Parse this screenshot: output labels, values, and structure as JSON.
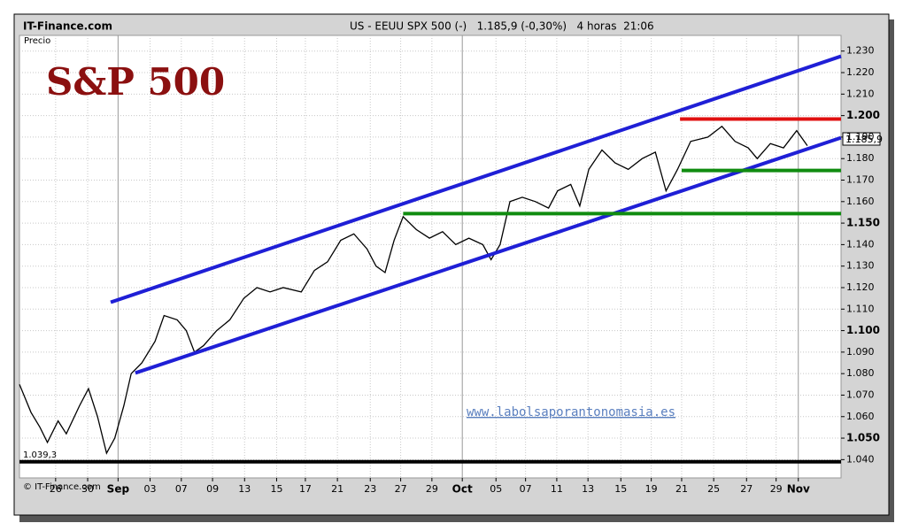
{
  "chart_data": {
    "type": "line",
    "site": "IT-Finance.com",
    "header": "US - EEUU SPX 500 (-)   1.185,9 (-0,30%)   4 horas  21:06",
    "y_label": "Precio",
    "title": "S&P 500",
    "watermark": "www.labolsaporantonomasia.es",
    "copyright": "© IT-Finance.com",
    "low_label": "1.039,3",
    "last_label": "1.185,9",
    "grid": true,
    "xlim": [
      0,
      100
    ],
    "ylim": [
      1.0315,
      1.2373
    ],
    "xticks": [
      {
        "value": 4.4,
        "label": "26"
      },
      {
        "value": 8.3,
        "label": "30"
      },
      {
        "value": 12.0,
        "label": "Sep"
      },
      {
        "value": 15.9,
        "label": "03"
      },
      {
        "value": 19.7,
        "label": "07"
      },
      {
        "value": 23.5,
        "label": "09"
      },
      {
        "value": 27.4,
        "label": "13"
      },
      {
        "value": 31.3,
        "label": "15"
      },
      {
        "value": 34.8,
        "label": "17"
      },
      {
        "value": 38.7,
        "label": "21"
      },
      {
        "value": 42.7,
        "label": "23"
      },
      {
        "value": 46.4,
        "label": "27"
      },
      {
        "value": 50.2,
        "label": "29"
      },
      {
        "value": 53.9,
        "label": "Oct"
      },
      {
        "value": 58.0,
        "label": "05"
      },
      {
        "value": 61.6,
        "label": "07"
      },
      {
        "value": 65.4,
        "label": "11"
      },
      {
        "value": 69.2,
        "label": "13"
      },
      {
        "value": 73.2,
        "label": "15"
      },
      {
        "value": 76.9,
        "label": "19"
      },
      {
        "value": 80.6,
        "label": "21"
      },
      {
        "value": 84.5,
        "label": "25"
      },
      {
        "value": 88.5,
        "label": "27"
      },
      {
        "value": 92.1,
        "label": "29"
      },
      {
        "value": 94.8,
        "label": "Nov"
      }
    ],
    "yticks": [
      {
        "value": 1.04,
        "label": "1.040"
      },
      {
        "value": 1.05,
        "label": "1.050"
      },
      {
        "value": 1.06,
        "label": "1.060"
      },
      {
        "value": 1.07,
        "label": "1.070"
      },
      {
        "value": 1.08,
        "label": "1.080"
      },
      {
        "value": 1.09,
        "label": "1.090"
      },
      {
        "value": 1.1,
        "label": "1.100"
      },
      {
        "value": 1.11,
        "label": "1.110"
      },
      {
        "value": 1.12,
        "label": "1.120"
      },
      {
        "value": 1.13,
        "label": "1.130"
      },
      {
        "value": 1.14,
        "label": "1.140"
      },
      {
        "value": 1.15,
        "label": "1.150"
      },
      {
        "value": 1.16,
        "label": "1.160"
      },
      {
        "value": 1.17,
        "label": "1.170"
      },
      {
        "value": 1.18,
        "label": "1.180"
      },
      {
        "value": 1.19,
        "label": "1.190"
      },
      {
        "value": 1.2,
        "label": "1.200"
      },
      {
        "value": 1.21,
        "label": "1.210"
      },
      {
        "value": 1.22,
        "label": "1.220"
      },
      {
        "value": 1.23,
        "label": "1.230"
      }
    ],
    "x": [
      0,
      1.4,
      2.5,
      3.4,
      4.7,
      5.7,
      7.3,
      8.4,
      9.5,
      10.6,
      11.6,
      12.7,
      13.6,
      14.9,
      16.5,
      17.6,
      19.2,
      20.3,
      21.3,
      22.4,
      24.0,
      25.6,
      27.3,
      28.9,
      30.5,
      32.1,
      34.3,
      35.9,
      37.5,
      39.1,
      40.7,
      42.3,
      43.4,
      44.5,
      45.6,
      46.7,
      48.3,
      49.9,
      51.5,
      53.1,
      54.7,
      56.4,
      57.4,
      58.5,
      59.7,
      61.2,
      62.8,
      64.4,
      65.5,
      67.1,
      68.2,
      69.3,
      70.9,
      72.5,
      74.1,
      75.8,
      77.4,
      78.7,
      80.1,
      81.7,
      83.8,
      85.5,
      87.1,
      88.7,
      89.8,
      91.4,
      93.0,
      94.6,
      95.9
    ],
    "series": [
      {
        "color": "#000000",
        "values": [
          1.075,
          1.062,
          1.055,
          1.048,
          1.058,
          1.052,
          1.065,
          1.073,
          1.06,
          1.043,
          1.05,
          1.065,
          1.08,
          1.085,
          1.095,
          1.107,
          1.105,
          1.1,
          1.09,
          1.093,
          1.1,
          1.105,
          1.115,
          1.12,
          1.118,
          1.12,
          1.118,
          1.128,
          1.132,
          1.142,
          1.145,
          1.138,
          1.13,
          1.127,
          1.142,
          1.153,
          1.147,
          1.143,
          1.146,
          1.14,
          1.143,
          1.14,
          1.133,
          1.14,
          1.16,
          1.162,
          1.16,
          1.157,
          1.165,
          1.168,
          1.158,
          1.175,
          1.184,
          1.178,
          1.175,
          1.18,
          1.183,
          1.165,
          1.175,
          1.188,
          1.19,
          1.195,
          1.188,
          1.185,
          1.18,
          1.187,
          1.185,
          1.193,
          1.186
        ]
      }
    ],
    "lines": [
      {
        "color": "#1f1fd6",
        "x1": 11.1,
        "y1": 1.1132,
        "x2": 100,
        "y2": 1.2276
      },
      {
        "color": "#1f1fd6",
        "x1": 14.1,
        "y1": 1.0803,
        "x2": 100,
        "y2": 1.1897
      },
      {
        "color": "#e01010",
        "x1": 80.4,
        "y1": 1.1984,
        "x2": 100,
        "y2": 1.1984
      },
      {
        "color": "#108c10",
        "x1": 80.6,
        "y1": 1.1745,
        "x2": 100,
        "y2": 1.1745
      },
      {
        "color": "#108c10",
        "x1": 46.7,
        "y1": 1.1544,
        "x2": 100,
        "y2": 1.1544
      },
      {
        "color": "#000000",
        "x1": 0,
        "y1": 1.039,
        "x2": 100,
        "y2": 1.039
      }
    ]
  }
}
